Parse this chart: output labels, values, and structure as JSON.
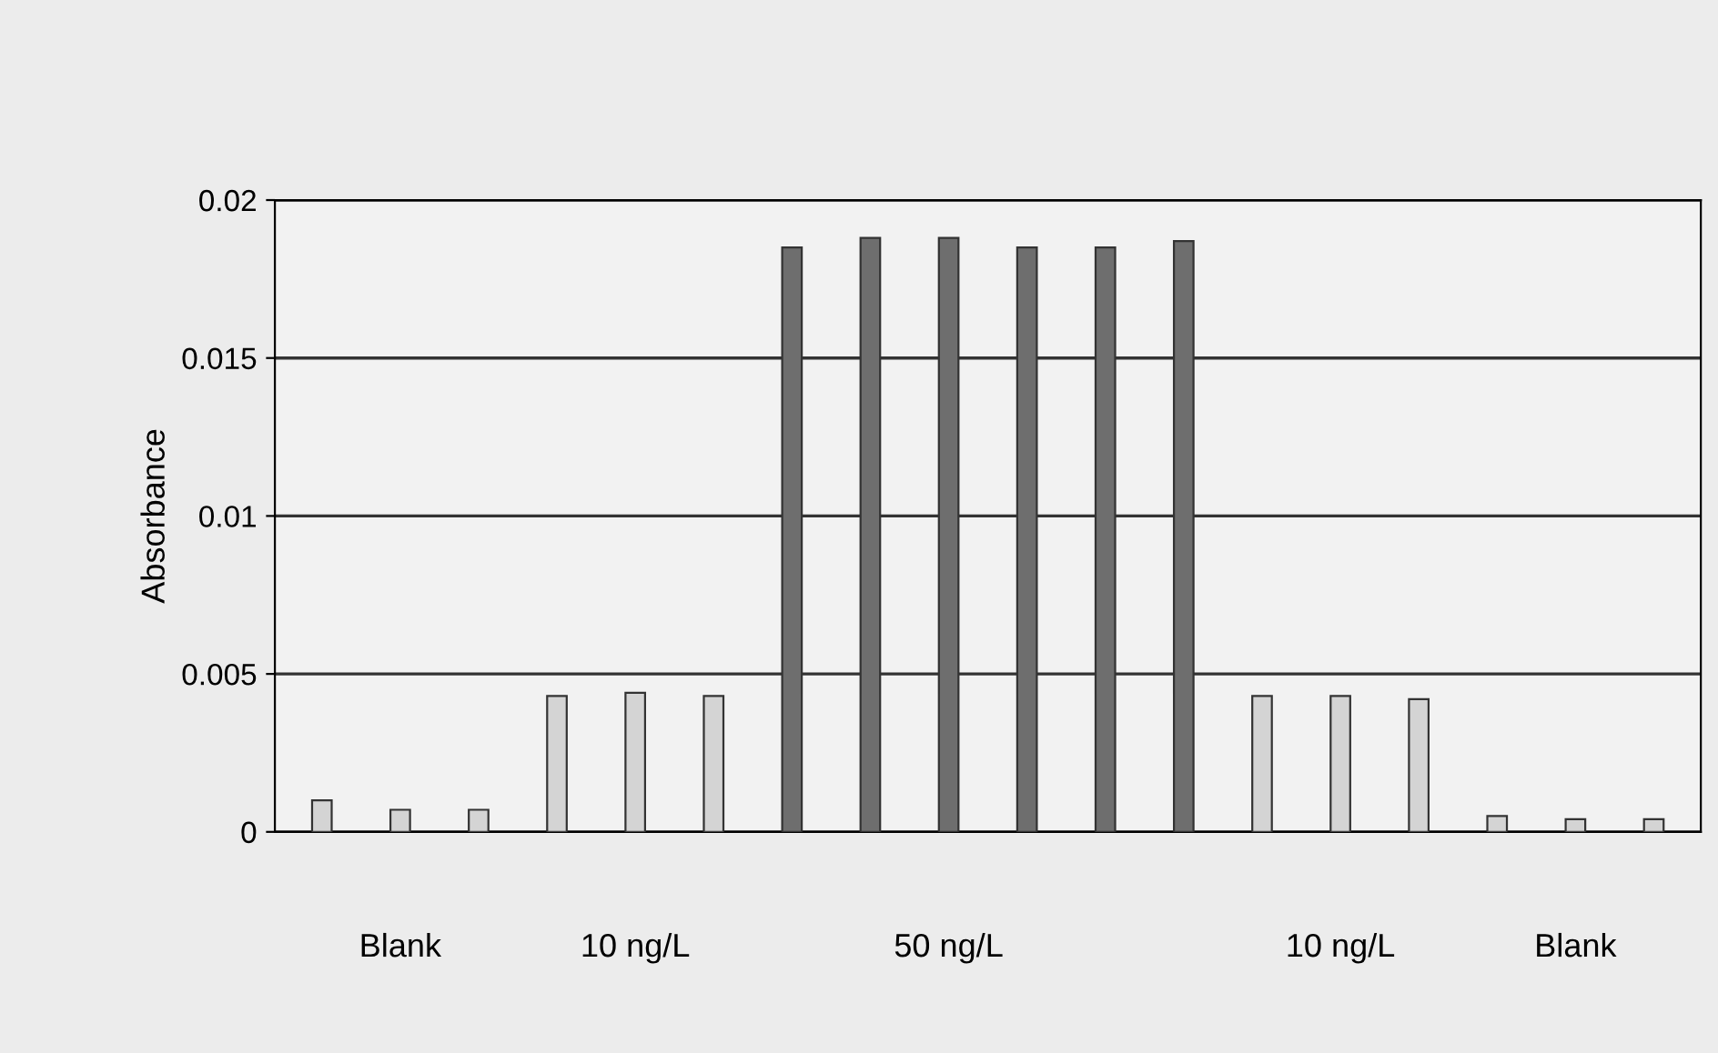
{
  "chart_data": {
    "type": "bar",
    "ylabel": "Absorbance",
    "categories": [
      null,
      "Blank",
      null,
      null,
      "10 ng/L",
      null,
      null,
      null,
      "50 ng/L",
      null,
      null,
      null,
      null,
      "10 ng/L",
      null,
      null,
      "Blank",
      null
    ],
    "values": [
      0.001,
      0.0007,
      0.0007,
      0.0043,
      0.0044,
      0.0043,
      0.0185,
      0.0188,
      0.0188,
      0.0185,
      0.0185,
      0.0187,
      0.0043,
      0.0043,
      0.0042,
      0.0005,
      0.0004,
      0.0004
    ],
    "colors": [
      "#d4d4d4",
      "#d4d4d4",
      "#d4d4d4",
      "#d4d4d4",
      "#d4d4d4",
      "#d4d4d4",
      "#6e6e6e",
      "#6e6e6e",
      "#6e6e6e",
      "#6e6e6e",
      "#6e6e6e",
      "#6e6e6e",
      "#d4d4d4",
      "#d4d4d4",
      "#d4d4d4",
      "#d4d4d4",
      "#d4d4d4",
      "#d4d4d4"
    ],
    "ylim": [
      0,
      0.02
    ],
    "yticks": [
      0,
      0.005,
      0.01,
      0.015,
      0.02
    ],
    "grid": "y"
  }
}
